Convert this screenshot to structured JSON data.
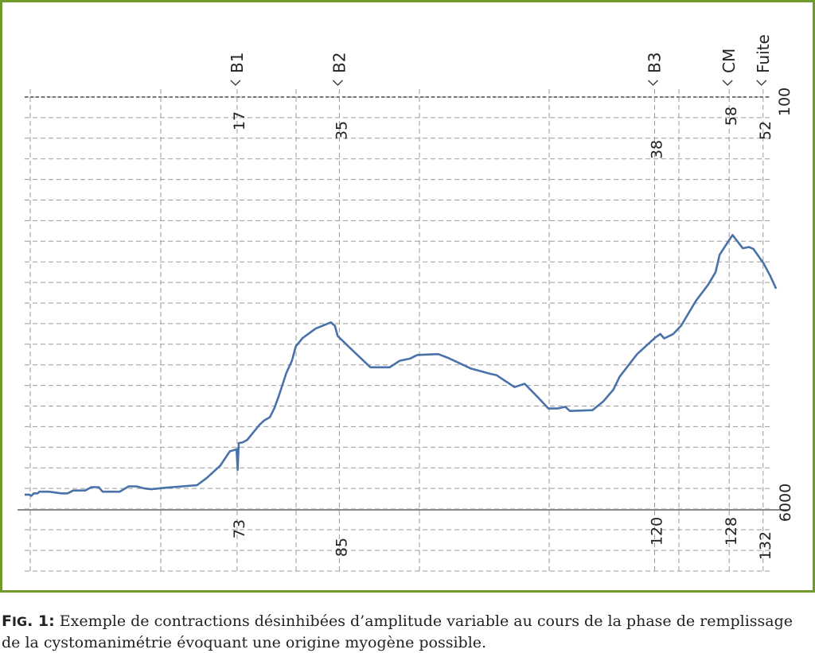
{
  "chart_data": {
    "type": "line",
    "x_range": [
      0,
      132
    ],
    "y_range": [
      0,
      100
    ],
    "grid": true,
    "line_color": "#4a72aa",
    "frame_color": "#6f9a2a",
    "series": [
      {
        "values": [
          [
            0,
            3.5
          ],
          [
            0.8,
            3.5
          ],
          [
            1.2,
            3.2
          ],
          [
            1.6,
            3.8
          ],
          [
            2.3,
            3.8
          ],
          [
            2.6,
            4.2
          ],
          [
            4.3,
            4.2
          ],
          [
            6.5,
            3.8
          ],
          [
            7.6,
            3.8
          ],
          [
            8.6,
            4.5
          ],
          [
            10.7,
            4.5
          ],
          [
            11.8,
            5.3
          ],
          [
            13.1,
            5.3
          ],
          [
            13.8,
            4.2
          ],
          [
            16.8,
            4.2
          ],
          [
            18.4,
            5.5
          ],
          [
            19.8,
            5.5
          ],
          [
            21.2,
            5
          ],
          [
            22.4,
            4.8
          ],
          [
            25.2,
            5.2
          ],
          [
            30.5,
            5.8
          ],
          [
            32.2,
            7.5
          ],
          [
            34.6,
            10.5
          ],
          [
            36.3,
            14
          ],
          [
            37.5,
            14.5
          ],
          [
            37.7,
            9.5
          ],
          [
            37.9,
            16
          ],
          [
            38.6,
            16.2
          ],
          [
            39.4,
            16.8
          ],
          [
            40.4,
            18.5
          ],
          [
            41.6,
            20.5
          ],
          [
            42.4,
            21.5
          ],
          [
            43.4,
            22.3
          ],
          [
            44.2,
            24.5
          ],
          [
            45.0,
            27.5
          ],
          [
            46.3,
            33
          ],
          [
            47.3,
            36
          ],
          [
            48.0,
            39.5
          ],
          [
            49.2,
            41.5
          ],
          [
            51.5,
            43.8
          ],
          [
            53.3,
            44.8
          ],
          [
            54.2,
            45.3
          ],
          [
            54.9,
            44.5
          ],
          [
            55.4,
            42
          ],
          [
            57.5,
            39.2
          ],
          [
            61.2,
            34.4
          ],
          [
            64.6,
            34.4
          ],
          [
            66.4,
            36
          ],
          [
            68.2,
            36.5
          ],
          [
            69.5,
            37.4
          ],
          [
            73.2,
            37.6
          ],
          [
            75.1,
            36.6
          ],
          [
            79.0,
            34.1
          ],
          [
            82.5,
            32.8
          ],
          [
            83.5,
            32.5
          ],
          [
            86.7,
            29.6
          ],
          [
            88.5,
            30.4
          ],
          [
            91.0,
            26.9
          ],
          [
            92.7,
            24.4
          ],
          [
            94.3,
            24.4
          ],
          [
            95.7,
            24.8
          ],
          [
            96.5,
            23.8
          ],
          [
            100.5,
            24
          ],
          [
            102.4,
            26.1
          ],
          [
            104.2,
            29
          ],
          [
            105.3,
            32.1
          ],
          [
            108.4,
            37.6
          ],
          [
            111.6,
            41.6
          ],
          [
            112.5,
            42.5
          ],
          [
            113.2,
            41.4
          ],
          [
            114.8,
            42.5
          ],
          [
            116.2,
            44.5
          ],
          [
            118.8,
            50.5
          ],
          [
            121.0,
            54.5
          ],
          [
            122.3,
            57.5
          ],
          [
            123.0,
            61.7
          ],
          [
            124.4,
            64.7
          ],
          [
            125.3,
            66.5
          ],
          [
            127.1,
            63.3
          ],
          [
            128.2,
            63.6
          ],
          [
            129.0,
            63.1
          ],
          [
            130.8,
            59.6
          ],
          [
            132.0,
            56.5
          ],
          [
            133.0,
            53.5
          ]
        ]
      }
    ],
    "events": [
      {
        "name": "B1",
        "x": 37.6,
        "top": "17",
        "bottom": "73"
      },
      {
        "name": "B2",
        "x": 55.7,
        "top": "35",
        "bottom": "85"
      },
      {
        "name": "B3",
        "x": 111.5,
        "top": "38",
        "bottom": "120"
      },
      {
        "name": "CM",
        "x": 124.7,
        "top": "58",
        "bottom": "128"
      },
      {
        "name": "Fuite",
        "x": 130.7,
        "top": "52",
        "bottom": "132"
      }
    ],
    "right_axis_top": "100",
    "right_axis_bottom": "6000"
  },
  "caption": {
    "label_f": "F",
    "label_ig": "IG",
    "label_num": ". 1:",
    "text": " Exemple de contractions désinhibées d’amplitude variable au cours de la phase de remplissage de la cystomanimétrie évoquant une origine myogène possible."
  }
}
